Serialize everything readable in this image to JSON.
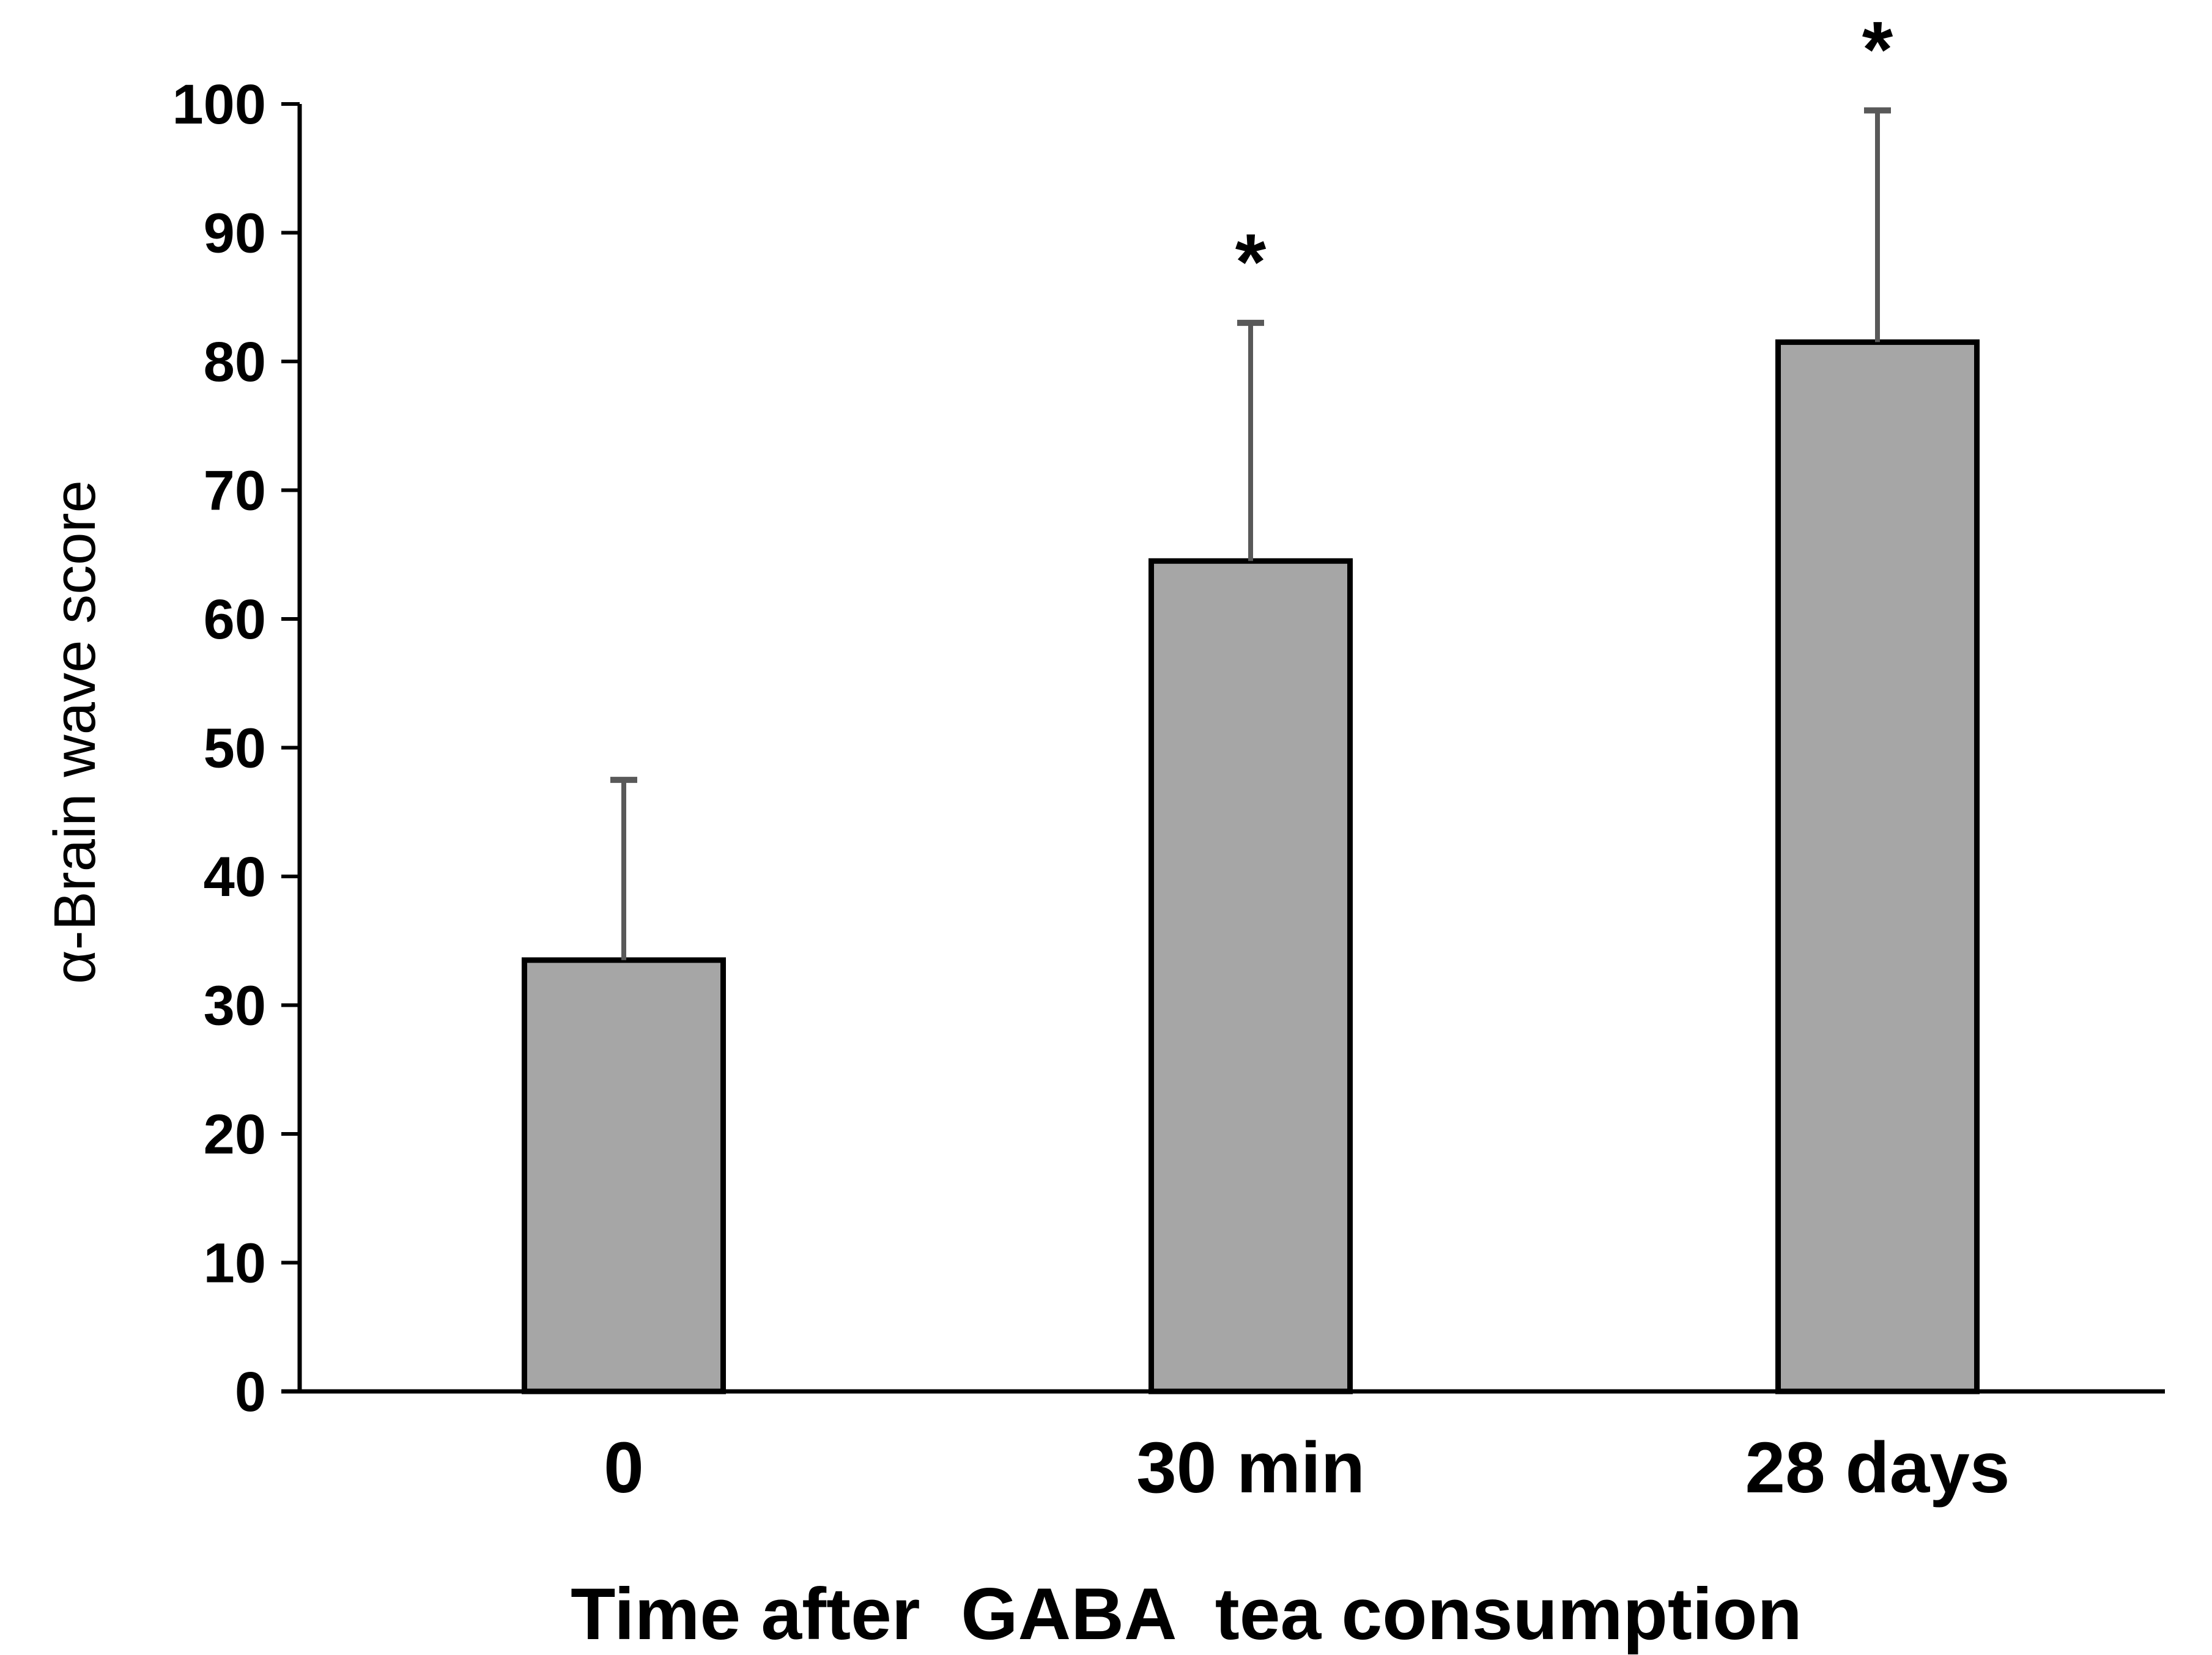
{
  "chart_data": {
    "type": "bar",
    "categories": [
      "0",
      "30 min",
      "28 days"
    ],
    "values": [
      33.5,
      64.5,
      81.5
    ],
    "errors": [
      14,
      18.5,
      18
    ],
    "annotations": [
      "",
      "*",
      "*"
    ],
    "xlabel": "Time after  GABA  tea consumption",
    "ylabel": "α-Brain wave score",
    "ylim": [
      0,
      100
    ],
    "yticks": [
      0,
      10,
      20,
      30,
      40,
      50,
      60,
      70,
      80,
      90,
      100
    ],
    "grid": false,
    "legend": "none",
    "colors": {
      "bar_fill": "#a6a6a6",
      "bar_stroke": "#000000",
      "error_bar": "#595959",
      "axis": "#000000"
    }
  }
}
